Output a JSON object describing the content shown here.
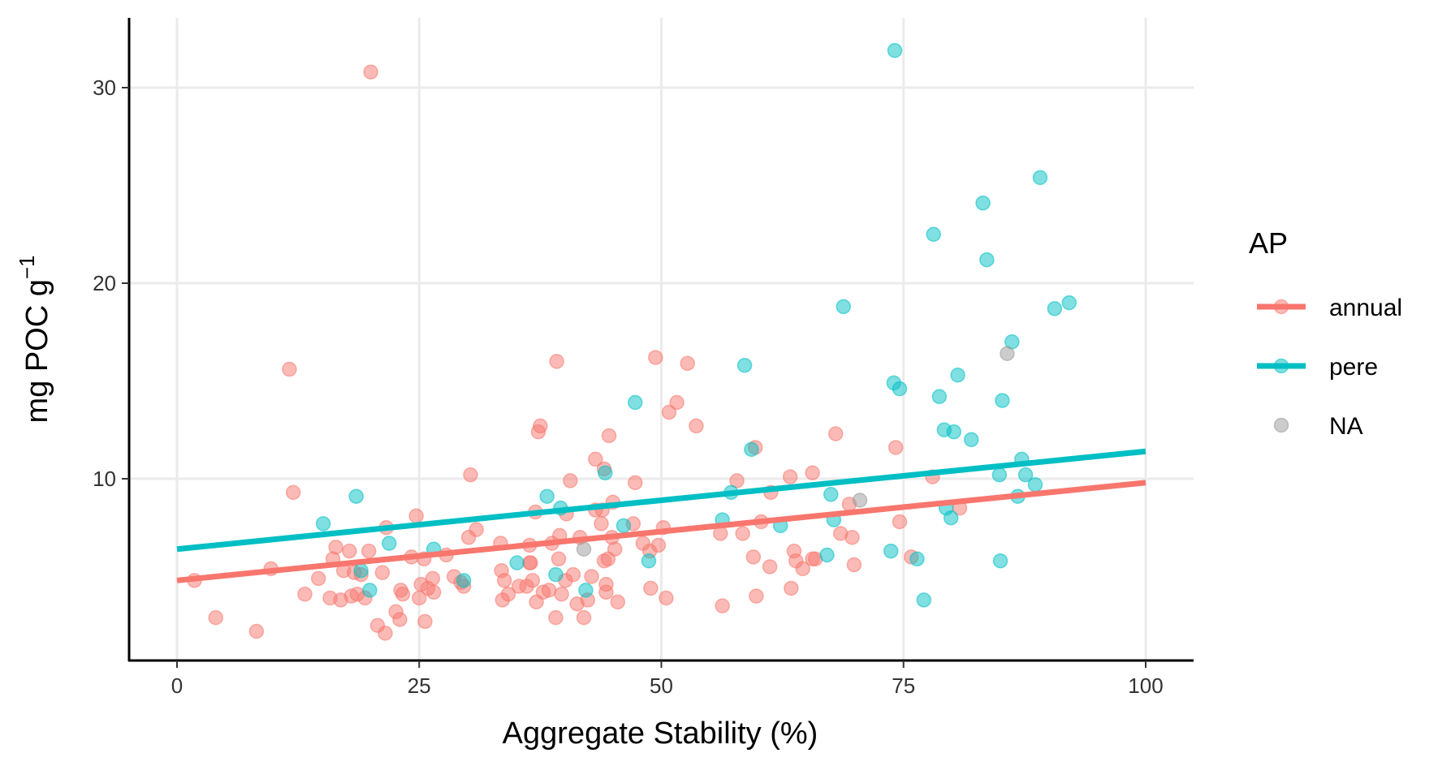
{
  "chart_data": {
    "type": "scatter",
    "title": "",
    "xlabel": "Aggregate Stability (%)",
    "ylabel": "mg POC g",
    "ylabel_superscript": "−1",
    "xlim": [
      -5,
      105
    ],
    "ylim": [
      1,
      34
    ],
    "x_ticks": [
      0,
      25,
      50,
      75,
      100
    ],
    "y_ticks": [
      10,
      20,
      30
    ],
    "x_tick_labels": [
      "0",
      "25",
      "50",
      "75",
      "100"
    ],
    "y_tick_labels": [
      "10",
      "20",
      "30"
    ],
    "grid": true,
    "legend": {
      "title": "AP",
      "position": "right",
      "entries": [
        {
          "label": "annual",
          "color": "#F8766D",
          "has_line": true
        },
        {
          "label": "pere",
          "color": "#00BFC4",
          "has_line": true
        },
        {
          "label": "NA",
          "color": "#999999",
          "has_line": false
        }
      ]
    },
    "series": [
      {
        "name": "annual",
        "color": "#F8766D",
        "fit_line": {
          "x": [
            0,
            100
          ],
          "y": [
            4.8,
            9.8
          ]
        },
        "points": [
          [
            1.8,
            4.8
          ],
          [
            4,
            2.9
          ],
          [
            8.2,
            2.2
          ],
          [
            9.7,
            5.4
          ],
          [
            11.6,
            15.6
          ],
          [
            12,
            9.3
          ],
          [
            13.2,
            4.1
          ],
          [
            14.6,
            4.9
          ],
          [
            15.8,
            3.9
          ],
          [
            16.1,
            5.9
          ],
          [
            16.4,
            6.5
          ],
          [
            16.9,
            3.8
          ],
          [
            17.2,
            5.3
          ],
          [
            17.8,
            6.3
          ],
          [
            18,
            4
          ],
          [
            18.3,
            5.2
          ],
          [
            18.6,
            4.1
          ],
          [
            19,
            5.1
          ],
          [
            19.4,
            3.9
          ],
          [
            19.8,
            6.3
          ],
          [
            20,
            30.8
          ],
          [
            20.7,
            2.5
          ],
          [
            21.2,
            5.2
          ],
          [
            21.5,
            2.1
          ],
          [
            21.6,
            7.5
          ],
          [
            22.6,
            3.2
          ],
          [
            23,
            2.8
          ],
          [
            23.1,
            4.3
          ],
          [
            23.3,
            4.1
          ],
          [
            24.2,
            6
          ],
          [
            24.7,
            8.1
          ],
          [
            25,
            3.9
          ],
          [
            25.2,
            4.6
          ],
          [
            25.5,
            5.9
          ],
          [
            25.6,
            2.7
          ],
          [
            25.9,
            4.4
          ],
          [
            26.4,
            4.9
          ],
          [
            26.5,
            4.2
          ],
          [
            27.8,
            6.1
          ],
          [
            28.6,
            5
          ],
          [
            29.3,
            4.7
          ],
          [
            29.6,
            4.5
          ],
          [
            30.1,
            7
          ],
          [
            30.3,
            10.2
          ],
          [
            30.9,
            7.4
          ],
          [
            33.4,
            6.7
          ],
          [
            33.5,
            5.3
          ],
          [
            33.6,
            3.8
          ],
          [
            33.8,
            4.8
          ],
          [
            34.2,
            4.1
          ],
          [
            35.3,
            4.5
          ],
          [
            36.1,
            4.5
          ],
          [
            36.4,
            6.6
          ],
          [
            36.4,
            5.7
          ],
          [
            36.5,
            5.7
          ],
          [
            36.7,
            4.8
          ],
          [
            37,
            8.3
          ],
          [
            37.1,
            3.7
          ],
          [
            37.3,
            12.4
          ],
          [
            37.5,
            12.7
          ],
          [
            37.8,
            4.2
          ],
          [
            38.4,
            4.3
          ],
          [
            38.7,
            6.7
          ],
          [
            39.1,
            2.9
          ],
          [
            39.2,
            16
          ],
          [
            39.4,
            5.9
          ],
          [
            39.5,
            7.1
          ],
          [
            39.7,
            4.1
          ],
          [
            40.1,
            4.8
          ],
          [
            40.2,
            8.2
          ],
          [
            40.6,
            9.9
          ],
          [
            40.9,
            5.1
          ],
          [
            41.3,
            3.6
          ],
          [
            41.6,
            7
          ],
          [
            42,
            2.9
          ],
          [
            42.4,
            3.8
          ],
          [
            42.8,
            5
          ],
          [
            43.2,
            11
          ],
          [
            43.2,
            8.4
          ],
          [
            43.8,
            7.7
          ],
          [
            43.9,
            8.4
          ],
          [
            44.1,
            10.5
          ],
          [
            44.1,
            5.8
          ],
          [
            44.3,
            4.6
          ],
          [
            44.3,
            4.2
          ],
          [
            44.5,
            5.9
          ],
          [
            44.6,
            12.2
          ],
          [
            44.9,
            7
          ],
          [
            45,
            8.8
          ],
          [
            45.2,
            6.4
          ],
          [
            45.5,
            3.7
          ],
          [
            47.1,
            7.7
          ],
          [
            47.3,
            9.8
          ],
          [
            48.1,
            6.7
          ],
          [
            48.8,
            6.3
          ],
          [
            48.9,
            4.4
          ],
          [
            49.4,
            16.2
          ],
          [
            49.7,
            6.6
          ],
          [
            50.2,
            7.5
          ],
          [
            50.5,
            3.9
          ],
          [
            50.8,
            13.4
          ],
          [
            51.6,
            13.9
          ],
          [
            52.7,
            15.9
          ],
          [
            53.6,
            12.7
          ],
          [
            56.1,
            7.2
          ],
          [
            56.3,
            3.5
          ],
          [
            57.8,
            9.9
          ],
          [
            58.4,
            7.2
          ],
          [
            59.5,
            6
          ],
          [
            59.7,
            11.6
          ],
          [
            59.8,
            4
          ],
          [
            60.3,
            7.8
          ],
          [
            61.2,
            5.5
          ],
          [
            61.3,
            9.3
          ],
          [
            63.3,
            10.1
          ],
          [
            63.4,
            4.4
          ],
          [
            63.7,
            6.3
          ],
          [
            63.9,
            5.8
          ],
          [
            64.6,
            5.4
          ],
          [
            65.6,
            5.9
          ],
          [
            65.6,
            10.3
          ],
          [
            65.9,
            5.9
          ],
          [
            68,
            12.3
          ],
          [
            68.5,
            7.2
          ],
          [
            69.4,
            8.7
          ],
          [
            69.7,
            7
          ],
          [
            69.9,
            5.6
          ],
          [
            74.2,
            11.6
          ],
          [
            74.6,
            7.8
          ],
          [
            75.8,
            6
          ],
          [
            78,
            10.1
          ],
          [
            80.8,
            8.5
          ]
        ]
      },
      {
        "name": "pere",
        "color": "#00BFC4",
        "fit_line": {
          "x": [
            0,
            100
          ],
          "y": [
            6.4,
            11.4
          ]
        },
        "points": [
          [
            15.1,
            7.7
          ],
          [
            18.5,
            9.1
          ],
          [
            19,
            5.3
          ],
          [
            19.9,
            4.3
          ],
          [
            21.9,
            6.7
          ],
          [
            26.5,
            6.4
          ],
          [
            29.6,
            4.8
          ],
          [
            35.1,
            5.7
          ],
          [
            38.2,
            9.1
          ],
          [
            39.1,
            5.1
          ],
          [
            39.6,
            8.5
          ],
          [
            42.2,
            4.3
          ],
          [
            44.2,
            10.3
          ],
          [
            46.1,
            7.6
          ],
          [
            47.3,
            13.9
          ],
          [
            48.7,
            5.8
          ],
          [
            56.3,
            7.9
          ],
          [
            57.2,
            9.3
          ],
          [
            58.6,
            15.8
          ],
          [
            59.3,
            11.5
          ],
          [
            62.3,
            7.6
          ],
          [
            67.1,
            6.1
          ],
          [
            67.5,
            9.2
          ],
          [
            67.8,
            7.9
          ],
          [
            68.8,
            18.8
          ],
          [
            73.7,
            6.3
          ],
          [
            74,
            14.9
          ],
          [
            74.1,
            31.9
          ],
          [
            74.6,
            14.6
          ],
          [
            76.4,
            5.9
          ],
          [
            77.1,
            3.8
          ],
          [
            78.1,
            22.5
          ],
          [
            78.7,
            14.2
          ],
          [
            79.2,
            12.5
          ],
          [
            79.4,
            8.5
          ],
          [
            79.9,
            8
          ],
          [
            80.2,
            12.4
          ],
          [
            80.6,
            15.3
          ],
          [
            82,
            12
          ],
          [
            83.2,
            24.1
          ],
          [
            83.6,
            21.2
          ],
          [
            84.9,
            10.2
          ],
          [
            85,
            5.8
          ],
          [
            85.2,
            14
          ],
          [
            86.2,
            17
          ],
          [
            86.8,
            9.1
          ],
          [
            87.2,
            11
          ],
          [
            87.6,
            10.2
          ],
          [
            88.6,
            9.7
          ],
          [
            89.1,
            25.4
          ],
          [
            90.6,
            18.7
          ],
          [
            92.1,
            19
          ]
        ]
      },
      {
        "name": "NA",
        "color": "#999999",
        "points": [
          [
            42,
            6.4
          ],
          [
            70.5,
            8.9
          ],
          [
            85.7,
            16.4
          ]
        ]
      }
    ]
  }
}
